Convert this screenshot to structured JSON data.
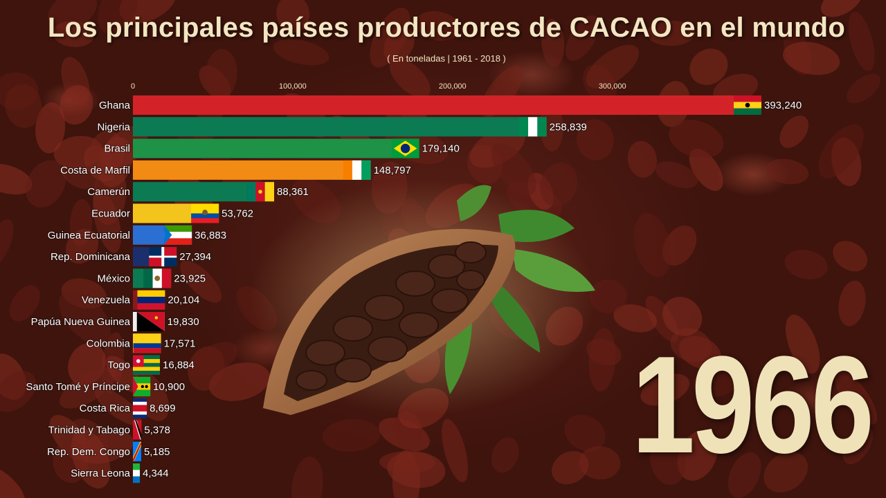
{
  "title": "Los principales países productores de CACAO en el mundo",
  "subtitle": "( En toneladas | 1961 - 2018 )",
  "year": "1966",
  "chart_data": {
    "type": "bar",
    "orientation": "horizontal",
    "title": "Los principales países productores de CACAO en el mundo",
    "subtitle": "( En toneladas | 1961 - 2018 )",
    "xlim": [
      0,
      393240
    ],
    "xticks": [
      0,
      100000,
      200000,
      300000
    ],
    "xtick_labels": [
      "0",
      "100,000",
      "200,000",
      "300,000"
    ],
    "categories": [
      "Ghana",
      "Nigeria",
      "Brasil",
      "Costa de Marfil",
      "Camerún",
      "Ecuador",
      "Guinea Ecuatorial",
      "Rep. Dominicana",
      "México",
      "Venezuela",
      "Papúa Nueva Guinea",
      "Colombia",
      "Togo",
      "Santo Tomé y Príncipe",
      "Costa Rica",
      "Trinidad y Tabago",
      "Rep. Dem. Congo",
      "Sierra Leona"
    ],
    "values": [
      393240,
      258839,
      179140,
      148797,
      88361,
      53762,
      36883,
      27394,
      23925,
      20104,
      19830,
      17571,
      16884,
      10900,
      8699,
      5378,
      5185,
      4344
    ],
    "value_labels": [
      "393,240",
      "258,839",
      "179,140",
      "148,797",
      "88,361",
      "53,762",
      "36,883",
      "27,394",
      "23,925",
      "20,104",
      "19,830",
      "17,571",
      "16,884",
      "10,900",
      "8,699",
      "5,378",
      "5,185",
      "4,344"
    ],
    "colors": [
      "#d32228",
      "#0c7a52",
      "#1e9246",
      "#f28b14",
      "#0c7a52",
      "#f3c51c",
      "#2a6fd1",
      "#1a2f6b",
      "#0c7a52",
      "#8a1a1a",
      "#eeeeee",
      "#f3c51c",
      "#f3c51c",
      "#1e9246",
      "#c8102e",
      "#d32228",
      "#2a8ad8",
      "#1e9246"
    ],
    "grid": false,
    "flag_icons": [
      "ghana-flag-icon",
      "nigeria-flag-icon",
      "brazil-flag-icon",
      "ivory-coast-flag-icon",
      "cameroon-flag-icon",
      "ecuador-flag-icon",
      "equatorial-guinea-flag-icon",
      "dominican-republic-flag-icon",
      "mexico-flag-icon",
      "venezuela-flag-icon",
      "papua-new-guinea-flag-icon",
      "colombia-flag-icon",
      "togo-flag-icon",
      "sao-tome-flag-icon",
      "costa-rica-flag-icon",
      "trinidad-tobago-flag-icon",
      "dr-congo-flag-icon",
      "sierra-leone-flag-icon"
    ]
  }
}
